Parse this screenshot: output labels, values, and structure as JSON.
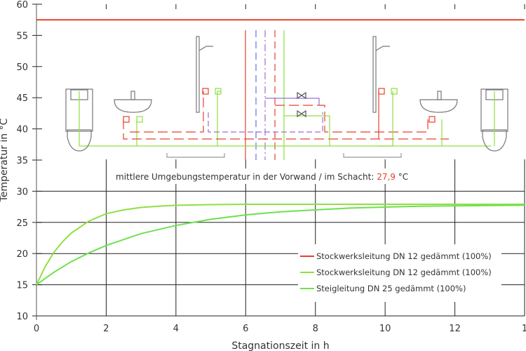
{
  "chart_data": {
    "type": "line",
    "xlabel": "Stagnationszeit  in h",
    "ylabel": "Temperatur in °C",
    "xlim": [
      0,
      14
    ],
    "ylim": [
      10,
      60
    ],
    "xticks": [
      "0",
      "2",
      "4",
      "6",
      "8",
      "10",
      "12",
      "1"
    ],
    "yticks": [
      "10",
      "15",
      "20",
      "25",
      "30",
      "35",
      "40",
      "45",
      "50",
      "55",
      "60"
    ],
    "grid": "vertical lines + y ticks",
    "annotation": {
      "text": "mittlere Umgebungstemperatur in der Vorwand / im Schacht: ",
      "value": "27,9",
      "unit": " °C",
      "value_color": "#e8402c"
    },
    "legend_position": "lower-right",
    "series": [
      {
        "name": "Stockwerksleitung DN 12 gedämmt (100%)",
        "color": "#e8402c",
        "x": [
          0,
          14
        ],
        "y": [
          57.5,
          57.5
        ]
      },
      {
        "name": "Stockwerksleitung DN 12 gedämmt (100%)",
        "color": "#8fe040",
        "x": [
          0,
          0.25,
          0.5,
          0.75,
          1,
          1.5,
          2,
          2.5,
          3,
          3.5,
          4,
          5,
          6,
          8,
          10,
          12,
          14
        ],
        "y": [
          15,
          17.9,
          20.2,
          21.9,
          23.3,
          25.2,
          26.4,
          27.0,
          27.4,
          27.6,
          27.75,
          27.85,
          27.9,
          27.9,
          27.9,
          27.9,
          27.9
        ]
      },
      {
        "name": "Steigleitung DN 25 gedämmt (100%)",
        "color": "#6fe050",
        "x": [
          0,
          0.5,
          1,
          1.5,
          2,
          3,
          4,
          5,
          6,
          7,
          8,
          9,
          10,
          11,
          12,
          13,
          14
        ],
        "y": [
          15,
          17.0,
          18.7,
          20.1,
          21.3,
          23.2,
          24.5,
          25.5,
          26.2,
          26.7,
          27.0,
          27.3,
          27.45,
          27.6,
          27.65,
          27.7,
          27.75
        ]
      }
    ]
  }
}
